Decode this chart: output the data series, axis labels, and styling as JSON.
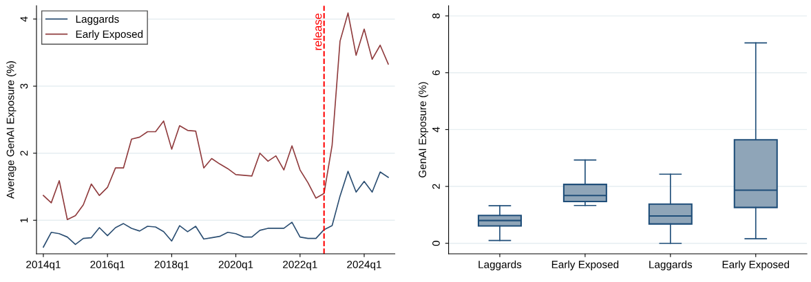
{
  "chart_data": [
    {
      "type": "line",
      "ylabel": "Average GenAI Exposure (%)",
      "x": [
        "2014-01",
        "2014-04",
        "2014-07",
        "2014-10",
        "2015-01",
        "2015-04",
        "2015-07",
        "2015-10",
        "2016-01",
        "2016-04",
        "2016-07",
        "2016-10",
        "2017-01",
        "2017-04",
        "2017-07",
        "2017-10",
        "2018-01",
        "2018-04",
        "2018-07",
        "2018-10",
        "2019-01",
        "2019-04",
        "2019-07",
        "2019-10",
        "2020-01",
        "2020-04",
        "2020-07",
        "2020-10",
        "2021-01",
        "2021-04",
        "2021-07",
        "2021-10",
        "2022-01",
        "2022-04",
        "2022-07",
        "2022-10",
        "2023-01",
        "2023-04",
        "2023-07",
        "2023-10",
        "2024-01",
        "2024-04",
        "2024-07",
        "2024-10"
      ],
      "series": [
        {
          "name": "Laggards",
          "color": "#2b4e72",
          "values": [
            0.6,
            0.82,
            0.8,
            0.75,
            0.64,
            0.73,
            0.74,
            0.89,
            0.77,
            0.89,
            0.95,
            0.88,
            0.84,
            0.91,
            0.9,
            0.83,
            0.69,
            0.92,
            0.83,
            0.91,
            0.72,
            0.74,
            0.76,
            0.82,
            0.8,
            0.75,
            0.75,
            0.85,
            0.88,
            0.88,
            0.88,
            0.97,
            0.75,
            0.73,
            0.73,
            0.86,
            0.92,
            1.36,
            1.73,
            1.42,
            1.58,
            1.42,
            1.72,
            1.64
          ]
        },
        {
          "name": "Early Exposed",
          "color": "#903c3e",
          "values": [
            1.37,
            1.26,
            1.59,
            1.01,
            1.07,
            1.23,
            1.54,
            1.37,
            1.49,
            1.78,
            1.78,
            2.21,
            2.24,
            2.32,
            2.32,
            2.48,
            2.06,
            2.41,
            2.34,
            2.33,
            1.78,
            1.92,
            1.84,
            1.77,
            1.68,
            1.67,
            1.66,
            2.0,
            1.88,
            1.96,
            1.75,
            2.11,
            1.75,
            1.56,
            1.33,
            1.4,
            2.12,
            3.67,
            4.09,
            3.46,
            3.85,
            3.4,
            3.61,
            3.33
          ]
        }
      ],
      "xlim": [
        "2013-10-15",
        "2024-12-15"
      ],
      "ylim": [
        0.5,
        4.2
      ],
      "xticks": [
        {
          "value": "2014-01",
          "label": "2014q1"
        },
        {
          "value": "2016-01",
          "label": "2016q1"
        },
        {
          "value": "2018-01",
          "label": "2018q1"
        },
        {
          "value": "2020-01",
          "label": "2020q1"
        },
        {
          "value": "2022-01",
          "label": "2022q1"
        },
        {
          "value": "2024-01",
          "label": "2024q1"
        }
      ],
      "yticks": [
        1,
        2,
        3,
        4
      ],
      "ref_lines": [
        {
          "axis": "x",
          "value": "2022-10",
          "label": "release",
          "color": "#ff0000",
          "line_style": "dashed"
        }
      ],
      "grid": "y",
      "legend": "top left",
      "line_style": "solid",
      "marker": "none"
    },
    {
      "type": "box",
      "ylabel": "GenAI Exposure (%)",
      "categories": [
        "Laggards",
        "Early Exposed",
        "Laggards",
        "Early Exposed"
      ],
      "series": [
        {
          "color": "#8fa5b8",
          "boxes": [
            {
              "low": 0.1,
              "q1": 0.61,
              "median": 0.8,
              "q3": 0.98,
              "high": 1.32
            },
            {
              "low": 1.33,
              "q1": 1.47,
              "median": 1.68,
              "q3": 2.07,
              "high": 2.93
            },
            {
              "low": 0.0,
              "q1": 0.68,
              "median": 0.96,
              "q3": 1.38,
              "high": 2.43
            },
            {
              "low": 0.16,
              "q1": 1.26,
              "median": 1.87,
              "q3": 3.64,
              "high": 7.05
            }
          ]
        }
      ],
      "ylim": [
        -0.37,
        8.36
      ],
      "yticks": [
        0,
        2,
        4,
        6,
        8
      ],
      "grid": "y",
      "legend": false
    }
  ]
}
